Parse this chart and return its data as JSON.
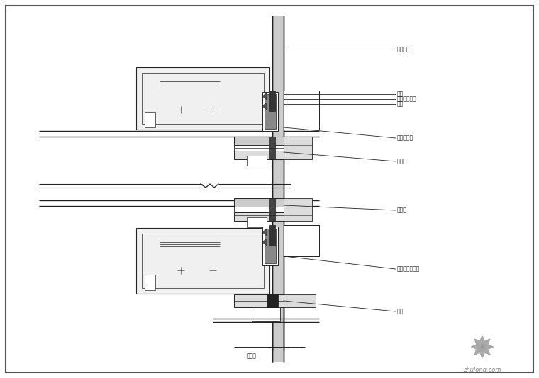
{
  "bg_color": "#ffffff",
  "border_color": "#555555",
  "line_color": "#222222",
  "annotations": {
    "top1": "可调节层",
    "top2": "胶条",
    "top3": "自救成型销具",
    "top4": "胶条",
    "top5": "防火岁材料",
    "top6": "层间板",
    "bot1": "层间板",
    "bot2": "不锈钢螺丝拉条",
    "bot3": "防火",
    "bot4": "内内板"
  },
  "watermark": "zhulong.com"
}
